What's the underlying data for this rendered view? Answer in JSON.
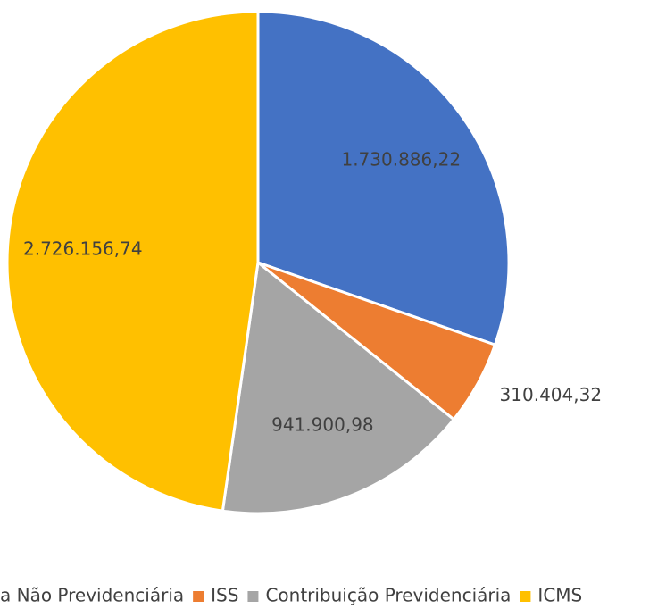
{
  "chart_data": {
    "type": "pie",
    "categories": [
      "a Não Previdenciária",
      "ISS",
      "Contribuição Previdenciária",
      "ICMS"
    ],
    "values": [
      1730886.22,
      310404.32,
      941900.98,
      2726156.74
    ],
    "value_labels": [
      "1.730.886,22",
      "310.404,32",
      "941.900,98",
      "2.726.156,74"
    ],
    "colors": [
      "#4472c4",
      "#ed7d31",
      "#a5a5a5",
      "#ffc000"
    ],
    "legend": "bottom"
  }
}
